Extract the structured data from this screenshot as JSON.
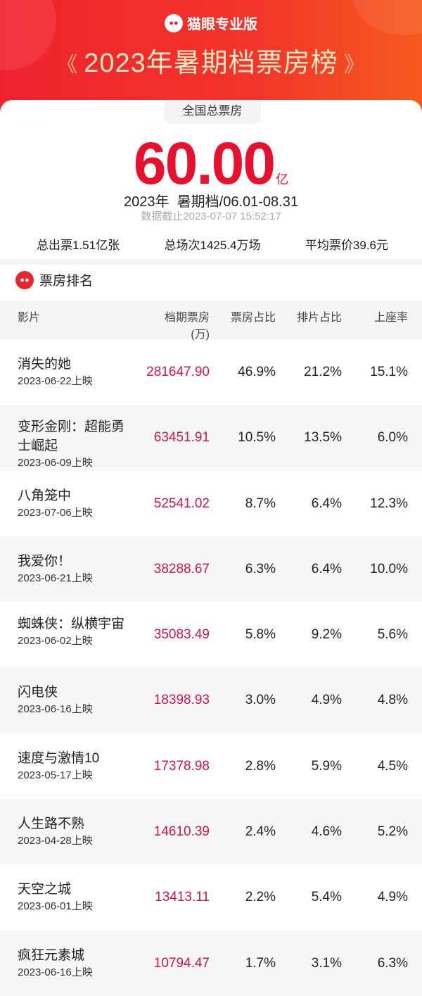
{
  "header": {
    "brand": "猫眼专业版",
    "title": "2023年暑期档票房榜",
    "colors": {
      "banner": "#f0222e",
      "accent": "#e8102f",
      "title_text": "#fde7c2"
    }
  },
  "summary": {
    "label": "全国总票房",
    "total": "60.00",
    "unit": "亿",
    "year": "2023年",
    "period": "暑期档/06.01-08.31",
    "as_of": "数据截止2023-07-07 15:52:17",
    "tickets": "总出票1.51亿张",
    "shows": "总场次1425.4万场",
    "avg_price": "平均票价39.6元"
  },
  "ranking": {
    "title": "票房排名",
    "columns": [
      "影片",
      "档期票房",
      "(万)",
      "票房占比",
      "排片占比",
      "上座率"
    ],
    "rows": [
      {
        "name": "消失的她",
        "date": "2023-06-22上映",
        "box": "281647.90",
        "share": "46.9%",
        "screen": "21.2%",
        "seat": "15.1%"
      },
      {
        "name": "变形金刚：超能勇士崛起",
        "date": "2023-06-09上映",
        "box": "63451.91",
        "share": "10.5%",
        "screen": "13.5%",
        "seat": "6.0%"
      },
      {
        "name": "八角笼中",
        "date": "2023-07-06上映",
        "box": "52541.02",
        "share": "8.7%",
        "screen": "6.4%",
        "seat": "12.3%"
      },
      {
        "name": "我爱你！",
        "date": "2023-06-21上映",
        "box": "38288.67",
        "share": "6.3%",
        "screen": "6.4%",
        "seat": "10.0%"
      },
      {
        "name": "蜘蛛侠：纵横宇宙",
        "date": "2023-06-02上映",
        "box": "35083.49",
        "share": "5.8%",
        "screen": "9.2%",
        "seat": "5.6%"
      },
      {
        "name": "闪电侠",
        "date": "2023-06-16上映",
        "box": "18398.93",
        "share": "3.0%",
        "screen": "4.9%",
        "seat": "4.8%"
      },
      {
        "name": "速度与激情10",
        "date": "2023-05-17上映",
        "box": "17378.98",
        "share": "2.8%",
        "screen": "5.9%",
        "seat": "4.5%"
      },
      {
        "name": "人生路不熟",
        "date": "2023-04-28上映",
        "box": "14610.39",
        "share": "2.4%",
        "screen": "4.6%",
        "seat": "5.2%"
      },
      {
        "name": "天空之城",
        "date": "2023-06-01上映",
        "box": "13413.11",
        "share": "2.2%",
        "screen": "5.4%",
        "seat": "4.9%"
      },
      {
        "name": "疯狂元素城",
        "date": "2023-06-16上映",
        "box": "10794.47",
        "share": "1.7%",
        "screen": "3.1%",
        "seat": "6.3%"
      }
    ]
  }
}
